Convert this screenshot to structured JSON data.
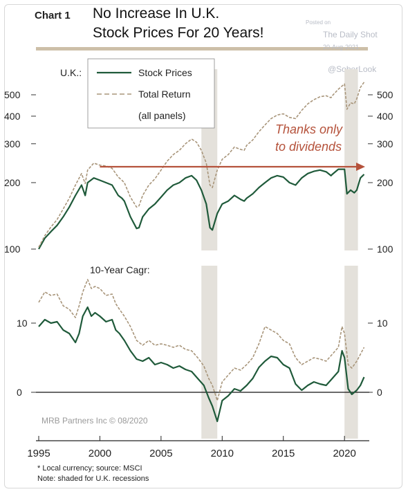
{
  "header": {
    "chart_label": "Chart 1",
    "title_line1": "No Increase In U.K.",
    "title_line2": "Stock Prices For 20 Years!"
  },
  "watermark": {
    "posted_on": "Posted on",
    "source": "The Daily Shot",
    "date": "20-Aug-2021",
    "handle": "@SoberLook"
  },
  "colors": {
    "stock": "#1f5a3a",
    "total_return": "#a8957a",
    "arrow": "#b5523b",
    "recession": "#e4e1db",
    "rule": "#cdbfa8"
  },
  "footer": {
    "note1": "* Local currency; source: MSCI",
    "note2": "Note: shaded for U.K. recessions"
  },
  "chart_data": [
    {
      "type": "line",
      "panel_label": "U.K.:",
      "yscale": "log",
      "ylim": [
        100,
        600
      ],
      "y_ticks": [
        "500",
        "400",
        "300",
        "200",
        "100"
      ],
      "xlim": [
        1995,
        2021.8
      ],
      "legend": {
        "placement": "top-left",
        "entries": [
          "Stock Prices",
          "Total Return"
        ],
        "note": "(all panels)"
      },
      "annotation": {
        "text_line1": "Thanks only",
        "text_line2": "to dividends",
        "arrow_from": [
          2000,
          236
        ],
        "arrow_to": [
          2021.8,
          236
        ]
      },
      "recessions": [
        [
          2008.3,
          2009.6
        ],
        [
          2020.0,
          2021.1
        ]
      ],
      "series": [
        {
          "name": "Stock Prices",
          "style": "solid",
          "x": [
            1995.0,
            1995.5,
            1996.0,
            1996.5,
            1997.0,
            1997.5,
            1998.0,
            1998.5,
            1998.8,
            1999.0,
            1999.5,
            2000.0,
            2000.5,
            2001.0,
            2001.5,
            2001.8,
            2002.0,
            2002.5,
            2003.0,
            2003.2,
            2003.5,
            2004.0,
            2004.5,
            2005.0,
            2005.5,
            2006.0,
            2006.5,
            2007.0,
            2007.5,
            2007.9,
            2008.3,
            2008.7,
            2009.0,
            2009.2,
            2009.6,
            2010.0,
            2010.5,
            2011.0,
            2011.5,
            2011.8,
            2012.0,
            2012.5,
            2013.0,
            2013.5,
            2014.0,
            2014.5,
            2015.0,
            2015.5,
            2016.0,
            2016.5,
            2017.0,
            2017.5,
            2018.0,
            2018.5,
            2018.9,
            2019.0,
            2019.5,
            2020.0,
            2020.2,
            2020.5,
            2020.8,
            2021.0,
            2021.3,
            2021.6
          ],
          "y": [
            100,
            112,
            120,
            128,
            140,
            155,
            175,
            195,
            175,
            200,
            210,
            205,
            200,
            195,
            175,
            170,
            165,
            140,
            124,
            125,
            140,
            152,
            160,
            172,
            185,
            195,
            200,
            210,
            215,
            205,
            185,
            160,
            125,
            122,
            145,
            160,
            165,
            175,
            168,
            165,
            170,
            178,
            190,
            200,
            210,
            215,
            212,
            200,
            195,
            210,
            220,
            225,
            228,
            224,
            215,
            218,
            230,
            230,
            178,
            185,
            180,
            185,
            210,
            218
          ]
        },
        {
          "name": "Total Return",
          "style": "dashed",
          "x": [
            1995.0,
            1995.5,
            1996.0,
            1996.5,
            1997.0,
            1997.5,
            1998.0,
            1998.5,
            1998.8,
            1999.0,
            1999.5,
            2000.0,
            2000.5,
            2001.0,
            2001.5,
            2001.8,
            2002.0,
            2002.5,
            2003.0,
            2003.2,
            2003.5,
            2004.0,
            2004.5,
            2005.0,
            2005.5,
            2006.0,
            2006.5,
            2007.0,
            2007.5,
            2007.9,
            2008.3,
            2008.7,
            2009.0,
            2009.2,
            2009.6,
            2010.0,
            2010.5,
            2011.0,
            2011.5,
            2011.8,
            2012.0,
            2012.5,
            2013.0,
            2013.5,
            2014.0,
            2014.5,
            2015.0,
            2015.5,
            2016.0,
            2016.5,
            2017.0,
            2017.5,
            2018.0,
            2018.5,
            2018.9,
            2019.0,
            2019.5,
            2020.0,
            2020.2,
            2020.5,
            2020.8,
            2021.0,
            2021.3,
            2021.6
          ],
          "y": [
            102,
            115,
            126,
            136,
            152,
            170,
            195,
            220,
            198,
            228,
            245,
            240,
            238,
            232,
            212,
            205,
            200,
            172,
            155,
            157,
            175,
            195,
            208,
            228,
            250,
            268,
            280,
            300,
            315,
            305,
            280,
            245,
            195,
            190,
            228,
            255,
            268,
            290,
            283,
            280,
            295,
            312,
            340,
            365,
            390,
            405,
            410,
            395,
            390,
            425,
            455,
            475,
            490,
            495,
            485,
            495,
            530,
            560,
            430,
            460,
            455,
            480,
            540,
            570
          ]
        }
      ]
    },
    {
      "type": "line",
      "panel_label": "10-Year Cagr:",
      "ylim": [
        -5,
        17
      ],
      "y_ticks": [
        "10",
        "0"
      ],
      "x_ticks": [
        "1995",
        "2000",
        "2005",
        "2010",
        "2015",
        "2020"
      ],
      "xlim": [
        1995,
        2021.8
      ],
      "credit": "MRB Partners Inc © 08/2020",
      "recessions": [
        [
          2008.3,
          2009.6
        ],
        [
          2020.0,
          2021.1
        ]
      ],
      "series": [
        {
          "name": "Stock Prices",
          "style": "solid",
          "x": [
            1995.0,
            1995.5,
            1996.0,
            1996.5,
            1997.0,
            1997.5,
            1998.0,
            1998.3,
            1998.6,
            1999.0,
            1999.3,
            1999.6,
            2000.0,
            2000.5,
            2001.0,
            2001.3,
            2001.6,
            2002.0,
            2002.5,
            2003.0,
            2003.5,
            2004.0,
            2004.5,
            2005.0,
            2005.5,
            2006.0,
            2006.5,
            2007.0,
            2007.5,
            2008.0,
            2008.5,
            2008.9,
            2009.2,
            2009.6,
            2010.0,
            2010.5,
            2011.0,
            2011.5,
            2012.0,
            2012.5,
            2013.0,
            2013.5,
            2014.0,
            2014.5,
            2015.0,
            2015.5,
            2016.0,
            2016.5,
            2017.0,
            2017.5,
            2018.0,
            2018.5,
            2019.0,
            2019.5,
            2019.8,
            2020.0,
            2020.3,
            2020.6,
            2021.0,
            2021.3,
            2021.6
          ],
          "y": [
            9.5,
            10.5,
            10.0,
            10.2,
            9.0,
            8.5,
            7.2,
            8.5,
            11.0,
            12.3,
            11.0,
            11.5,
            11.0,
            10.2,
            10.5,
            9.0,
            8.5,
            7.5,
            6.0,
            4.8,
            4.5,
            5.0,
            4.0,
            4.3,
            4.0,
            3.5,
            3.8,
            3.3,
            3.0,
            2.0,
            1.0,
            -0.8,
            -2.0,
            -4.2,
            -1.2,
            -0.5,
            0.5,
            0.2,
            1.0,
            2.0,
            3.6,
            4.5,
            5.2,
            5.0,
            4.0,
            3.5,
            1.2,
            0.3,
            1.0,
            1.5,
            1.2,
            1.0,
            2.0,
            3.0,
            6.0,
            5.0,
            0.5,
            -0.3,
            0.3,
            1.0,
            2.2
          ]
        },
        {
          "name": "Total Return",
          "style": "dashed",
          "x": [
            1995.0,
            1995.5,
            1996.0,
            1996.5,
            1997.0,
            1997.5,
            1998.0,
            1998.3,
            1998.6,
            1999.0,
            1999.3,
            1999.6,
            2000.0,
            2000.5,
            2001.0,
            2001.3,
            2001.6,
            2002.0,
            2002.5,
            2003.0,
            2003.5,
            2004.0,
            2004.5,
            2005.0,
            2005.5,
            2006.0,
            2006.5,
            2007.0,
            2007.5,
            2008.0,
            2008.5,
            2008.9,
            2009.2,
            2009.6,
            2010.0,
            2010.5,
            2011.0,
            2011.5,
            2012.0,
            2012.5,
            2013.0,
            2013.5,
            2014.0,
            2014.5,
            2015.0,
            2015.5,
            2016.0,
            2016.5,
            2017.0,
            2017.5,
            2018.0,
            2018.5,
            2019.0,
            2019.5,
            2019.8,
            2020.0,
            2020.3,
            2020.6,
            2021.0,
            2021.3,
            2021.6
          ],
          "y": [
            13.0,
            14.5,
            14.0,
            14.2,
            12.5,
            12.0,
            10.8,
            12.5,
            14.5,
            16.3,
            15.0,
            15.3,
            15.0,
            14.0,
            14.2,
            12.8,
            12.0,
            11.0,
            9.5,
            7.5,
            6.8,
            7.5,
            6.8,
            7.0,
            6.8,
            6.5,
            6.8,
            6.2,
            6.0,
            5.0,
            3.8,
            2.0,
            1.0,
            -1.2,
            1.5,
            2.5,
            3.5,
            3.2,
            4.0,
            5.0,
            7.0,
            9.5,
            9.0,
            8.5,
            7.5,
            7.0,
            5.0,
            4.0,
            4.5,
            5.0,
            4.8,
            4.5,
            5.5,
            6.5,
            9.5,
            8.5,
            4.0,
            3.5,
            4.5,
            5.5,
            6.5
          ]
        }
      ]
    }
  ]
}
